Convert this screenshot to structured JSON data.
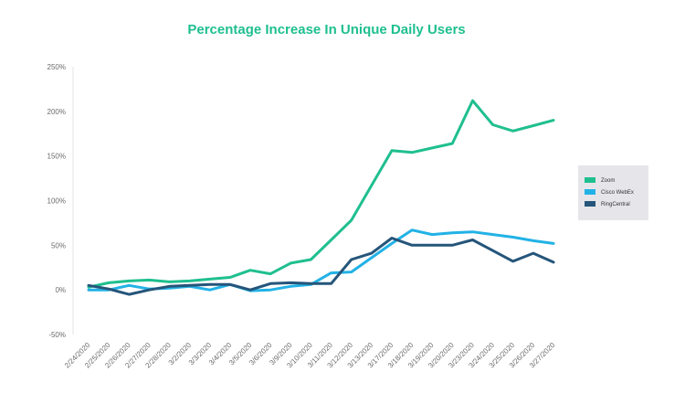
{
  "chart_data": {
    "type": "line",
    "title": "Percentage Increase In Unique Daily Users",
    "xlabel": "",
    "ylabel": "",
    "categories": [
      "2/24/2020",
      "2/25/2020",
      "2/26/2020",
      "2/27/2020",
      "2/28/2020",
      "3/2/2020",
      "3/3/2020",
      "3/4/2020",
      "3/5/2020",
      "3/6/2020",
      "3/9/2020",
      "3/10/2020",
      "3/11/2020",
      "3/12/2020",
      "3/13/2020",
      "3/17/2020",
      "3/18/2020",
      "3/19/2020",
      "3/20/2020",
      "3/23/2020",
      "3/24/2020",
      "3/25/2020",
      "3/26/2020",
      "3/27/2020"
    ],
    "ylim": [
      -50,
      250
    ],
    "yticks": [
      -50,
      0,
      50,
      100,
      150,
      200,
      250
    ],
    "ytick_labels": [
      "-50%",
      "0%",
      "50%",
      "100%",
      "150%",
      "200%",
      "250%"
    ],
    "grid": false,
    "legend_position": "right",
    "series": [
      {
        "name": "Zoom",
        "color": "#1fbf8f",
        "values": [
          3,
          8,
          10,
          11,
          9,
          10,
          12,
          14,
          22,
          18,
          30,
          34,
          56,
          78,
          117,
          156,
          154,
          159,
          164,
          212,
          185,
          178,
          184,
          190
        ]
      },
      {
        "name": "Cisco WebEx",
        "color": "#22b2e6",
        "values": [
          0,
          0,
          5,
          1,
          2,
          4,
          0,
          6,
          -1,
          0,
          4,
          6,
          19,
          20,
          36,
          52,
          67,
          62,
          64,
          65,
          62,
          59,
          55,
          52
        ]
      },
      {
        "name": "RingCentral",
        "color": "#25557a",
        "values": [
          5,
          1,
          -5,
          0,
          4,
          5,
          6,
          6,
          0,
          7,
          8,
          7,
          7,
          34,
          41,
          58,
          50,
          50,
          50,
          56,
          44,
          32,
          41,
          31
        ]
      }
    ]
  }
}
